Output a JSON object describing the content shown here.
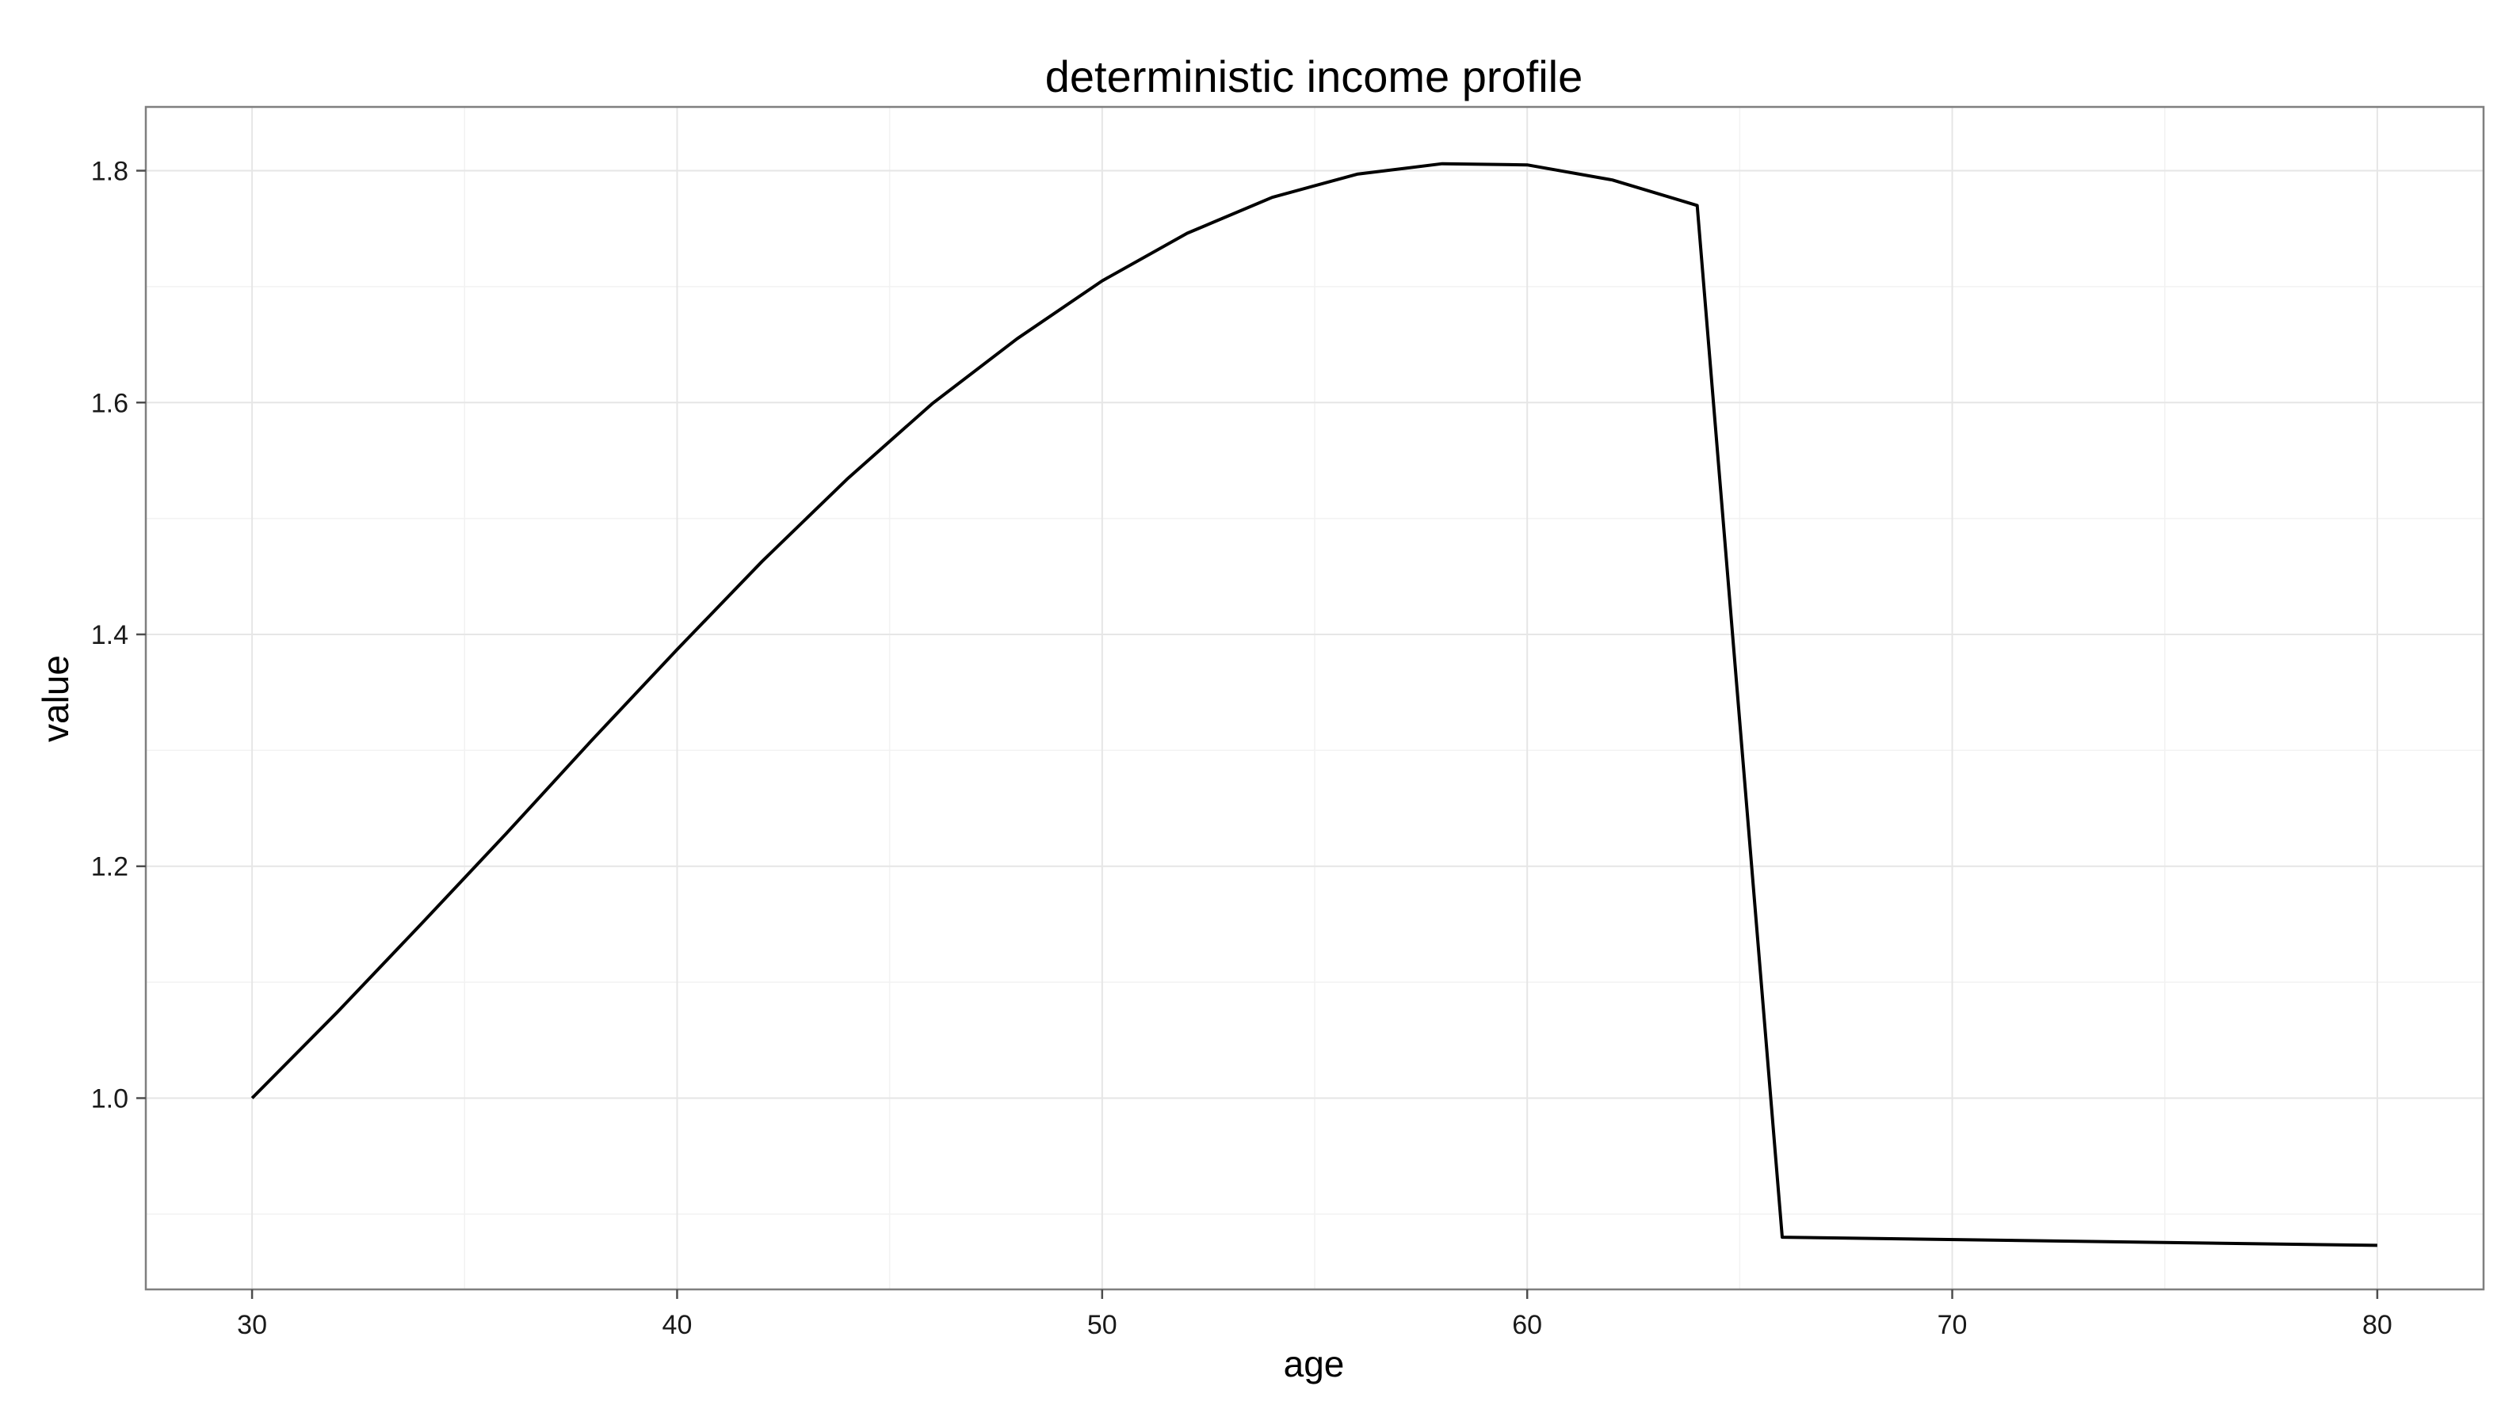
{
  "chart_data": {
    "type": "line",
    "title": "deterministic income profile",
    "xlabel": "age",
    "ylabel": "value",
    "xlim": [
      27.5,
      82.5
    ],
    "ylim": [
      0.835,
      1.855
    ],
    "x_ticks": [
      30,
      40,
      50,
      60,
      70,
      80
    ],
    "x_tick_labels": [
      "30",
      "40",
      "50",
      "60",
      "70",
      "80"
    ],
    "y_ticks": [
      1.0,
      1.2,
      1.4,
      1.6,
      1.8
    ],
    "y_tick_labels": [
      "1.0",
      "1.2",
      "1.4",
      "1.6",
      "1.8"
    ],
    "grid": true,
    "legend": "none",
    "line_color": "#000000",
    "series": [
      {
        "x": [
          30,
          32,
          34,
          36,
          38,
          40,
          42,
          44,
          46,
          48,
          50,
          52,
          54,
          56,
          58,
          60,
          62,
          64,
          66,
          80
        ],
        "values": [
          1.0,
          1.074,
          1.151,
          1.229,
          1.309,
          1.387,
          1.463,
          1.534,
          1.599,
          1.655,
          1.705,
          1.746,
          1.777,
          1.797,
          1.806,
          1.805,
          1.792,
          1.77,
          0.88,
          0.873
        ]
      }
    ]
  }
}
